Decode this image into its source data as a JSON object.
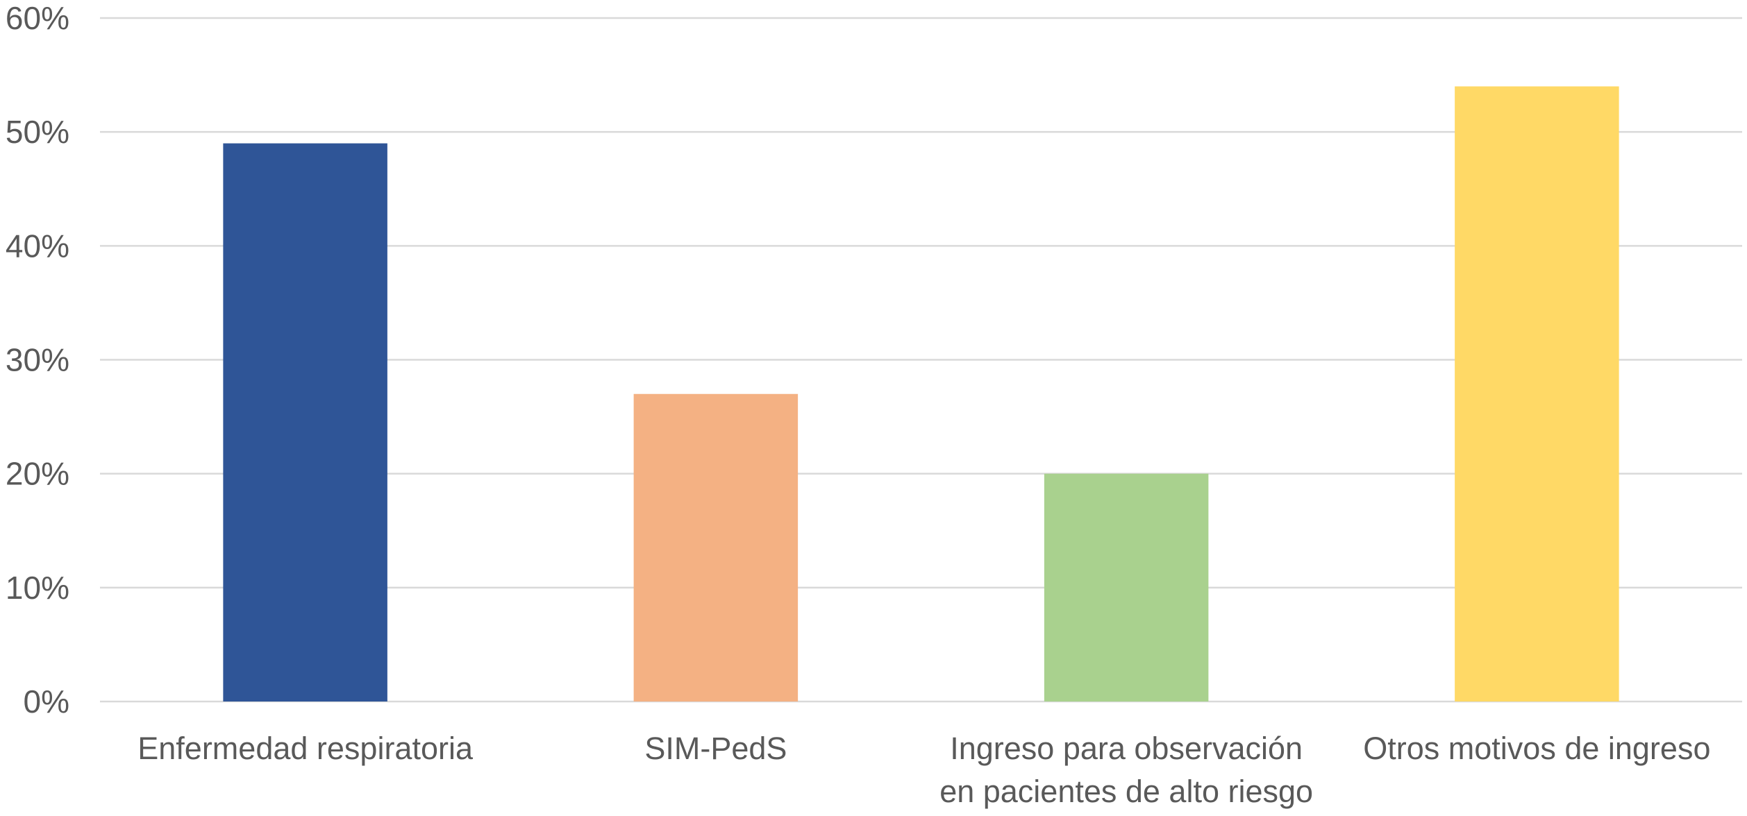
{
  "chart_data": {
    "type": "bar",
    "categories": [
      "Enfermedad respiratoria",
      "SIM-PedS",
      "Ingreso para observación en pacientes de alto riesgo",
      "Otros motivos de ingreso"
    ],
    "values": [
      49,
      27,
      20,
      54
    ],
    "bar_colors": [
      "#2F5597",
      "#F4B183",
      "#A9D18E",
      "#FFD966"
    ],
    "ylim": [
      0,
      60
    ],
    "yticks": [
      0,
      10,
      20,
      30,
      40,
      50,
      60
    ],
    "ytick_labels": [
      "0%",
      "10%",
      "20%",
      "30%",
      "40%",
      "50%",
      "60%"
    ],
    "grid": true,
    "legend": "none",
    "grid_color": "#D9D9D9",
    "text_color": "#595959"
  }
}
